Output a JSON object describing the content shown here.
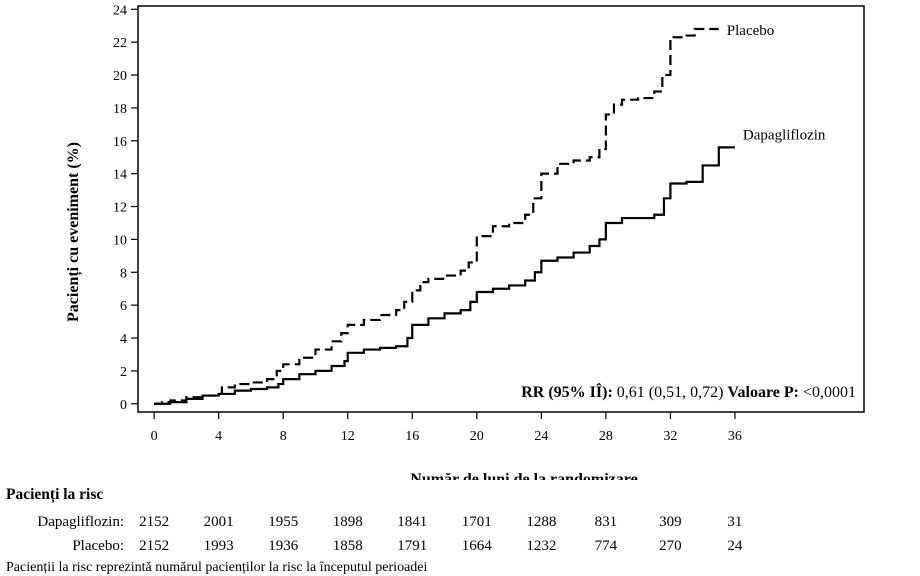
{
  "chart_data": {
    "type": "line",
    "xlabel": "Număr de luni de la randomizare",
    "ylabel": "Pacienți cu eveniment (%)",
    "xlim": [
      -1,
      44
    ],
    "ylim": [
      -0.5,
      24.2
    ],
    "x_ticks": [
      0,
      4,
      8,
      12,
      16,
      20,
      24,
      28,
      32,
      36
    ],
    "y_ticks": [
      0,
      2,
      4,
      6,
      8,
      10,
      12,
      14,
      16,
      18,
      20,
      22,
      24
    ],
    "annotation": {
      "rr_label": "RR (95% IÎ):",
      "rr_value": "0,61 (0,51, 0,72)",
      "p_label": "Valoare P:",
      "p_value": "<0,0001"
    },
    "series": [
      {
        "name": "Placebo",
        "style": "dashed",
        "points": [
          [
            0,
            0
          ],
          [
            0.5,
            0.1
          ],
          [
            1,
            0.2
          ],
          [
            2,
            0.4
          ],
          [
            3,
            0.5
          ],
          [
            3.8,
            0.6
          ],
          [
            4.2,
            1.0
          ],
          [
            5,
            1.2
          ],
          [
            6,
            1.3
          ],
          [
            7,
            1.5
          ],
          [
            7.6,
            2.0
          ],
          [
            8,
            2.4
          ],
          [
            9,
            2.8
          ],
          [
            10,
            3.3
          ],
          [
            11,
            3.8
          ],
          [
            11.6,
            4.3
          ],
          [
            12,
            4.8
          ],
          [
            13,
            5.1
          ],
          [
            14,
            5.4
          ],
          [
            15,
            5.7
          ],
          [
            15.5,
            6.2
          ],
          [
            16,
            6.9
          ],
          [
            16.5,
            7.4
          ],
          [
            17,
            7.6
          ],
          [
            18,
            7.8
          ],
          [
            19,
            8.1
          ],
          [
            19.5,
            8.6
          ],
          [
            20,
            10.2
          ],
          [
            21,
            10.8
          ],
          [
            22,
            11.0
          ],
          [
            23,
            11.5
          ],
          [
            23.5,
            12.5
          ],
          [
            24,
            14.0
          ],
          [
            25,
            14.6
          ],
          [
            26,
            14.8
          ],
          [
            27,
            15.0
          ],
          [
            27.6,
            15.5
          ],
          [
            28,
            17.6
          ],
          [
            28.5,
            18.2
          ],
          [
            29,
            18.5
          ],
          [
            30,
            18.6
          ],
          [
            31,
            19.0
          ],
          [
            31.5,
            20.0
          ],
          [
            32,
            22.3
          ],
          [
            33,
            22.4
          ],
          [
            33.5,
            22.8
          ],
          [
            35,
            22.8
          ]
        ]
      },
      {
        "name": "Dapagliflozin",
        "style": "solid",
        "points": [
          [
            0,
            0
          ],
          [
            1,
            0.1
          ],
          [
            2,
            0.3
          ],
          [
            3,
            0.5
          ],
          [
            4,
            0.6
          ],
          [
            5,
            0.8
          ],
          [
            6,
            0.9
          ],
          [
            7,
            1.0
          ],
          [
            7.7,
            1.2
          ],
          [
            8,
            1.5
          ],
          [
            9,
            1.8
          ],
          [
            10,
            2.0
          ],
          [
            11,
            2.3
          ],
          [
            11.8,
            2.6
          ],
          [
            12,
            3.1
          ],
          [
            13,
            3.3
          ],
          [
            14,
            3.4
          ],
          [
            15,
            3.5
          ],
          [
            15.7,
            4.0
          ],
          [
            16,
            4.8
          ],
          [
            17,
            5.2
          ],
          [
            18,
            5.5
          ],
          [
            19,
            5.7
          ],
          [
            19.6,
            6.2
          ],
          [
            20,
            6.8
          ],
          [
            21,
            7.0
          ],
          [
            22,
            7.2
          ],
          [
            23,
            7.5
          ],
          [
            23.6,
            8.0
          ],
          [
            24,
            8.7
          ],
          [
            25,
            8.9
          ],
          [
            26,
            9.2
          ],
          [
            27,
            9.6
          ],
          [
            27.6,
            10.0
          ],
          [
            28,
            11.0
          ],
          [
            29,
            11.3
          ],
          [
            31,
            11.5
          ],
          [
            31.6,
            12.5
          ],
          [
            32,
            13.4
          ],
          [
            33,
            13.5
          ],
          [
            34,
            14.5
          ],
          [
            35,
            15.6
          ],
          [
            36,
            15.6
          ]
        ]
      }
    ]
  },
  "risk_table": {
    "title": "Pacienți la risc",
    "rows": [
      {
        "label": "Dapagliflozin:",
        "values": [
          "2152",
          "2001",
          "1955",
          "1898",
          "1841",
          "1701",
          "1288",
          "831",
          "309",
          "31"
        ]
      },
      {
        "label": "Placebo:",
        "values": [
          "2152",
          "1993",
          "1936",
          "1858",
          "1791",
          "1664",
          "1232",
          "774",
          "270",
          "24"
        ]
      }
    ]
  },
  "footnote": "Pacienții la risc reprezintă numărul pacienților la risc la începutul perioadei"
}
